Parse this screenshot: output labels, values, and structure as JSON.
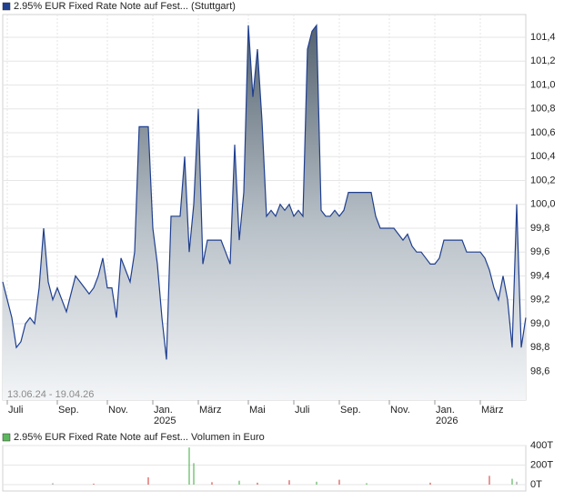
{
  "chart_data": [
    {
      "type": "line",
      "annotation": "13.06.24 - 19.04.26",
      "series": [
        {
          "name": "2.95% EUR Fixed Rate Note auf Fest... (Stuttgart)",
          "color": "#1f3f8f",
          "values": [
            99.35,
            99.2,
            99.05,
            98.8,
            98.85,
            99.0,
            99.05,
            99.0,
            99.3,
            99.8,
            99.35,
            99.2,
            99.3,
            99.2,
            99.1,
            99.25,
            99.4,
            99.35,
            99.3,
            99.25,
            99.3,
            99.4,
            99.55,
            99.3,
            99.3,
            99.05,
            99.55,
            99.45,
            99.35,
            99.6,
            100.65,
            100.65,
            100.65,
            99.8,
            99.5,
            99.05,
            98.7,
            99.9,
            99.9,
            99.9,
            100.4,
            99.6,
            100.0,
            100.8,
            99.5,
            99.7,
            99.7,
            99.7,
            99.7,
            99.6,
            99.5,
            100.5,
            99.7,
            100.1,
            101.5,
            100.9,
            101.3,
            100.7,
            99.9,
            99.95,
            99.9,
            100.0,
            99.95,
            100.0,
            99.9,
            99.95,
            99.9,
            101.3,
            101.45,
            101.5,
            99.95,
            99.9,
            99.9,
            99.95,
            99.9,
            99.95,
            100.1,
            100.1,
            100.1,
            100.1,
            100.1,
            100.1,
            99.9,
            99.8,
            99.8,
            99.8,
            99.8,
            99.75,
            99.7,
            99.75,
            99.65,
            99.6,
            99.6,
            99.55,
            99.5,
            99.5,
            99.55,
            99.7,
            99.7,
            99.7,
            99.7,
            99.7,
            99.6,
            99.6,
            99.6,
            99.6,
            99.55,
            99.45,
            99.3,
            99.2,
            99.4,
            99.2,
            98.8,
            100.0,
            98.8,
            99.05
          ]
        }
      ],
      "xlim": [
        0,
        115
      ],
      "xticks": [
        {
          "value": 1,
          "label": "Juli"
        },
        {
          "value": 12,
          "label": "Sep."
        },
        {
          "value": 23,
          "label": "Nov."
        },
        {
          "value": 33,
          "label": "Jan.\n2025"
        },
        {
          "value": 43,
          "label": "März"
        },
        {
          "value": 54,
          "label": "Mai"
        },
        {
          "value": 64,
          "label": "Juli"
        },
        {
          "value": 74,
          "label": "Sep."
        },
        {
          "value": 85,
          "label": "Nov."
        },
        {
          "value": 95,
          "label": "Jan.\n2026"
        },
        {
          "value": 105,
          "label": "März"
        }
      ],
      "ylim": [
        98.36,
        101.59
      ],
      "yticks": [
        {
          "value": 98.6,
          "label": "98,6"
        },
        {
          "value": 98.8,
          "label": "98,8"
        },
        {
          "value": 99.0,
          "label": "99,0"
        },
        {
          "value": 99.2,
          "label": "99,2"
        },
        {
          "value": 99.4,
          "label": "99,4"
        },
        {
          "value": 99.6,
          "label": "99,6"
        },
        {
          "value": 99.8,
          "label": "99,8"
        },
        {
          "value": 100.0,
          "label": "100,0"
        },
        {
          "value": 100.2,
          "label": "100,2"
        },
        {
          "value": 100.4,
          "label": "100,4"
        },
        {
          "value": 100.6,
          "label": "100,6"
        },
        {
          "value": 100.8,
          "label": "100,8"
        },
        {
          "value": 101.0,
          "label": "101,0"
        },
        {
          "value": 101.2,
          "label": "101,2"
        },
        {
          "value": 101.4,
          "label": "101,4"
        }
      ],
      "grid": true
    },
    {
      "type": "bar",
      "series": [
        {
          "name": "2.95% EUR Fixed Rate Note auf Fest... Volumen in Euro",
          "color": "#5cb85c",
          "x": [
            11,
            20,
            32,
            41,
            42,
            46,
            52,
            56,
            63,
            69,
            74,
            80,
            94,
            107,
            112,
            113
          ],
          "values": [
            15,
            10,
            75,
            380,
            220,
            25,
            40,
            20,
            45,
            30,
            50,
            15,
            20,
            90,
            60,
            30
          ],
          "colors": [
            "#999999",
            "#d9534f",
            "#d9534f",
            "#5cb85c",
            "#5cb85c",
            "#d9534f",
            "#5cb85c",
            "#d9534f",
            "#d9534f",
            "#5cb85c",
            "#d9534f",
            "#5cb85c",
            "#d9534f",
            "#d9534f",
            "#5cb85c",
            "#999999"
          ]
        }
      ],
      "xlim": [
        0,
        115
      ],
      "ylim": [
        0,
        400
      ],
      "yticks": [
        {
          "value": 0,
          "label": "0T"
        },
        {
          "value": 200,
          "label": "200T"
        },
        {
          "value": 400,
          "label": "400T"
        }
      ],
      "grid": true
    }
  ]
}
